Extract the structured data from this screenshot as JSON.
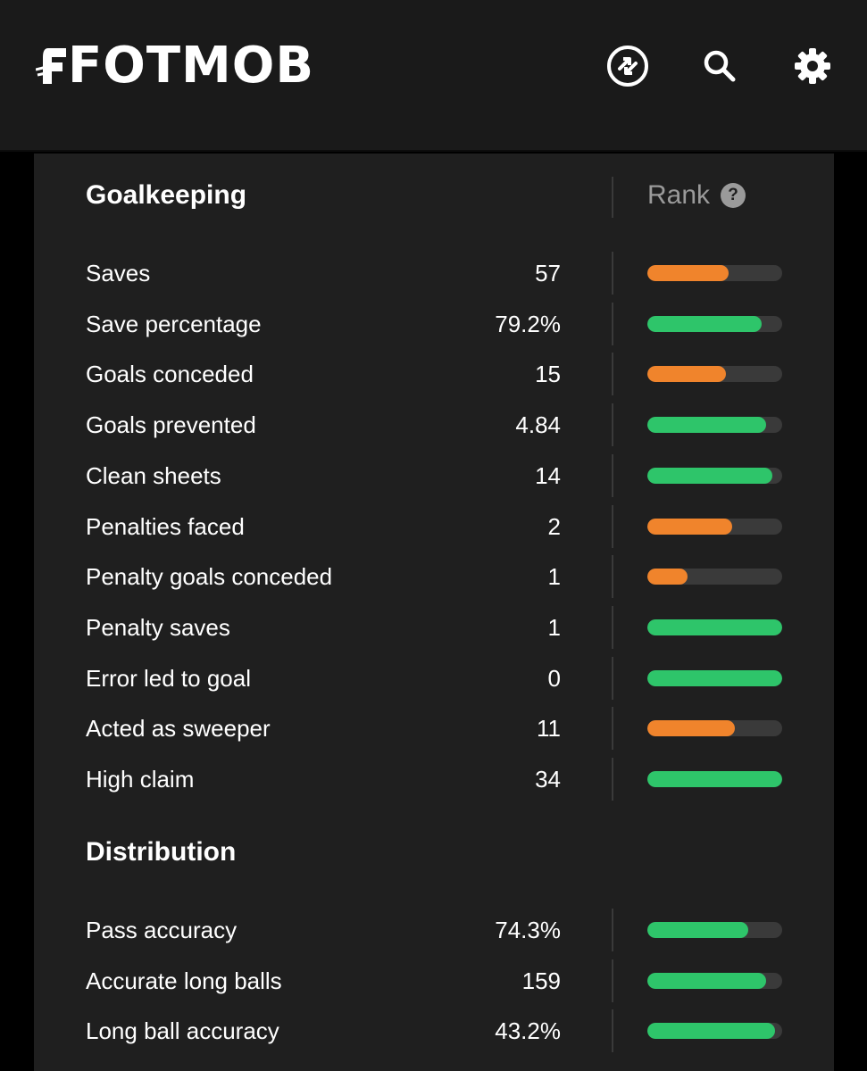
{
  "header": {
    "logo_text": "FOTMOB",
    "icons": [
      "transfer-icon",
      "search-icon",
      "gear-icon"
    ]
  },
  "colors": {
    "orange": "#f0842c",
    "green": "#2ec56a",
    "track": "#3a3a3a"
  },
  "goalkeeping": {
    "title": "Goalkeeping",
    "rank_label": "Rank",
    "help_glyph": "?",
    "rows": [
      {
        "label": "Saves",
        "value": "57",
        "rank_fill": 0.6,
        "color": "orange"
      },
      {
        "label": "Save percentage",
        "value": "79.2%",
        "rank_fill": 0.85,
        "color": "green"
      },
      {
        "label": "Goals conceded",
        "value": "15",
        "rank_fill": 0.58,
        "color": "orange"
      },
      {
        "label": "Goals prevented",
        "value": "4.84",
        "rank_fill": 0.88,
        "color": "green"
      },
      {
        "label": "Clean sheets",
        "value": "14",
        "rank_fill": 0.93,
        "color": "green"
      },
      {
        "label": "Penalties faced",
        "value": "2",
        "rank_fill": 0.63,
        "color": "orange"
      },
      {
        "label": "Penalty goals conceded",
        "value": "1",
        "rank_fill": 0.3,
        "color": "orange"
      },
      {
        "label": "Penalty saves",
        "value": "1",
        "rank_fill": 1.0,
        "color": "green"
      },
      {
        "label": "Error led to goal",
        "value": "0",
        "rank_fill": 1.0,
        "color": "green"
      },
      {
        "label": "Acted as sweeper",
        "value": "11",
        "rank_fill": 0.65,
        "color": "orange"
      },
      {
        "label": "High claim",
        "value": "34",
        "rank_fill": 1.0,
        "color": "green"
      }
    ]
  },
  "distribution": {
    "title": "Distribution",
    "rows": [
      {
        "label": "Pass accuracy",
        "value": "74.3%",
        "rank_fill": 0.75,
        "color": "green"
      },
      {
        "label": "Accurate long balls",
        "value": "159",
        "rank_fill": 0.88,
        "color": "green"
      },
      {
        "label": "Long ball accuracy",
        "value": "43.2%",
        "rank_fill": 0.95,
        "color": "green"
      }
    ]
  }
}
